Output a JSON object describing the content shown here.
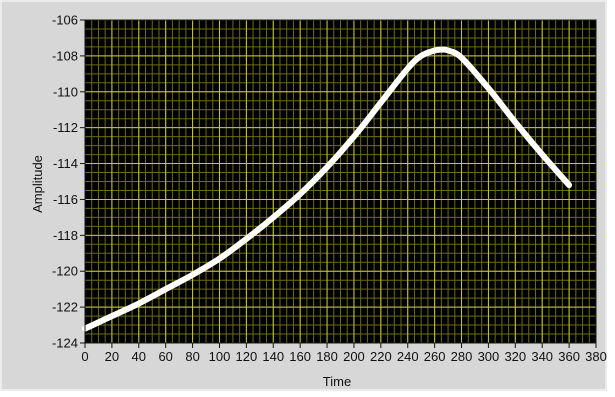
{
  "chart_data": {
    "type": "line",
    "xlabel": "Time",
    "ylabel": "Amplitude",
    "xlim": [
      0,
      380
    ],
    "ylim": [
      -124,
      -106
    ],
    "x_ticks": [
      0,
      20,
      40,
      60,
      80,
      100,
      120,
      140,
      160,
      180,
      200,
      220,
      240,
      260,
      280,
      300,
      320,
      340,
      360,
      380
    ],
    "y_ticks": [
      -106,
      -108,
      -110,
      -112,
      -114,
      -116,
      -118,
      -120,
      -122,
      -124
    ],
    "grid": true,
    "colors": {
      "plot_background": "#000000",
      "major_grid": "#c8c832",
      "minor_grid": "#6b6b14",
      "series_line": "#ffffff",
      "frame": "#d7d7d7"
    },
    "series": [
      {
        "x": [
          0,
          20,
          40,
          60,
          80,
          100,
          120,
          140,
          160,
          180,
          200,
          220,
          240,
          250,
          260,
          265,
          270,
          280,
          300,
          320,
          340,
          360
        ],
        "y": [
          -123.2,
          -122.5,
          -121.8,
          -121.0,
          -120.2,
          -119.3,
          -118.2,
          -117.0,
          -115.7,
          -114.2,
          -112.5,
          -110.6,
          -108.7,
          -108.0,
          -107.7,
          -107.65,
          -107.7,
          -108.1,
          -109.8,
          -111.7,
          -113.5,
          -115.2
        ]
      }
    ]
  }
}
